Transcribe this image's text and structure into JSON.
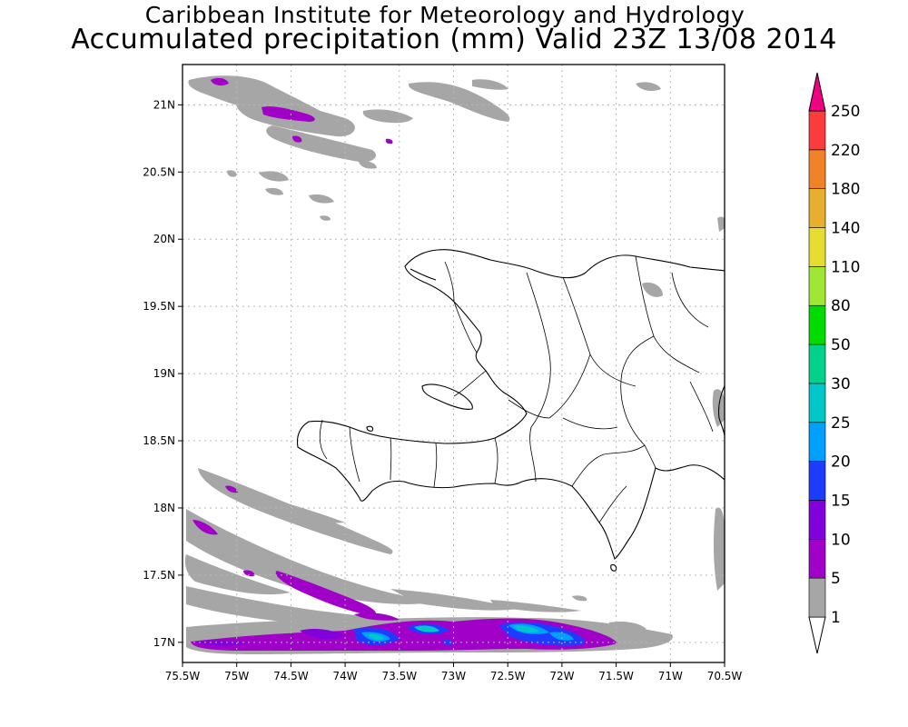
{
  "title": {
    "line1": "Caribbean Institute for Meteorology and Hydrology",
    "line2": "Accumulated precipitation (mm) Valid 23Z 13/08 2014"
  },
  "map": {
    "lon_range": [
      -75.5,
      -70.5
    ],
    "lat_range": [
      16.85,
      21.3
    ],
    "lon_ticks": [
      {
        "v": -75.5,
        "label": "75.5W"
      },
      {
        "v": -75.0,
        "label": "75W"
      },
      {
        "v": -74.5,
        "label": "74.5W"
      },
      {
        "v": -74.0,
        "label": "74W"
      },
      {
        "v": -73.5,
        "label": "73.5W"
      },
      {
        "v": -73.0,
        "label": "73W"
      },
      {
        "v": -72.5,
        "label": "72.5W"
      },
      {
        "v": -72.0,
        "label": "72W"
      },
      {
        "v": -71.5,
        "label": "71.5W"
      },
      {
        "v": -71.0,
        "label": "71W"
      },
      {
        "v": -70.5,
        "label": "70.5W"
      }
    ],
    "lat_ticks": [
      {
        "v": 17.0,
        "label": "17N"
      },
      {
        "v": 17.5,
        "label": "17.5N"
      },
      {
        "v": 18.0,
        "label": "18N"
      },
      {
        "v": 18.5,
        "label": "18.5N"
      },
      {
        "v": 19.0,
        "label": "19N"
      },
      {
        "v": 19.5,
        "label": "19.5N"
      },
      {
        "v": 20.0,
        "label": "20N"
      },
      {
        "v": 20.5,
        "label": "20.5N"
      },
      {
        "v": 21.0,
        "label": "21N"
      }
    ],
    "grid": true,
    "region": "Hispaniola (Haiti / Dominican Republic)"
  },
  "colorbar": {
    "levels": [
      {
        "label": "1",
        "color": "#a6a6a6"
      },
      {
        "label": "5",
        "color": "#a000c8"
      },
      {
        "label": "10",
        "color": "#8200dc"
      },
      {
        "label": "15",
        "color": "#1e3cff"
      },
      {
        "label": "20",
        "color": "#00a0ff"
      },
      {
        "label": "25",
        "color": "#00c8c8"
      },
      {
        "label": "30",
        "color": "#00d28c"
      },
      {
        "label": "50",
        "color": "#00dc00"
      },
      {
        "label": "80",
        "color": "#a0e632"
      },
      {
        "label": "110",
        "color": "#e6dc32"
      },
      {
        "label": "140",
        "color": "#e6af2d"
      },
      {
        "label": "180",
        "color": "#f08228"
      },
      {
        "label": "220",
        "color": "#fa3c3c"
      },
      {
        "label": "250",
        "color": "#f00082"
      }
    ],
    "top_label": "250"
  }
}
